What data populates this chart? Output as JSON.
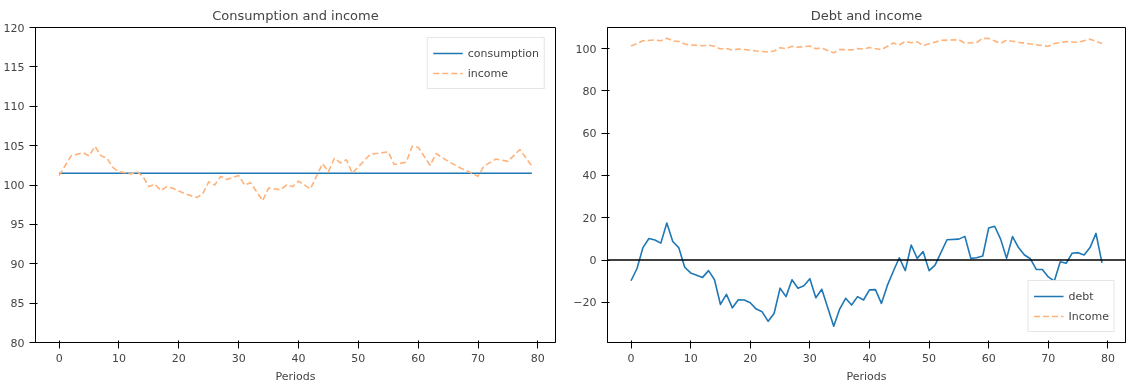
{
  "chart_data": [
    {
      "type": "line",
      "title": "Consumption and income",
      "xlabel": "Periods",
      "xlim": [
        -3.95,
        82.95
      ],
      "xticks": [
        0,
        10,
        20,
        30,
        40,
        50,
        60,
        70,
        80
      ],
      "ylim": [
        80,
        120
      ],
      "yticks": [
        80,
        85,
        90,
        95,
        100,
        105,
        110,
        115,
        120
      ],
      "grid": false,
      "legend": "top right",
      "series": [
        {
          "name": "consumption",
          "color": "#1f77b4",
          "line_style": "solid",
          "x": [
            0,
            79
          ],
          "values": [
            101.5,
            101.5
          ]
        },
        {
          "name": "income",
          "color": "#ffb27a",
          "line_style": "dashed",
          "x": [
            0,
            2,
            4,
            5,
            6,
            7,
            8,
            9,
            10,
            12,
            13,
            14,
            15,
            16,
            17,
            18,
            19,
            21,
            23,
            24,
            25,
            26,
            27,
            28,
            30,
            31,
            32,
            34,
            35,
            37,
            38,
            39,
            40,
            42,
            44,
            45,
            46,
            47,
            48,
            49,
            52,
            55,
            56,
            58,
            59,
            60,
            62,
            63,
            65,
            67,
            69,
            70,
            71,
            73,
            75,
            77,
            79
          ],
          "values": [
            101.2,
            103.7,
            104.1,
            103.7,
            104.9,
            103.7,
            103.4,
            102.2,
            101.7,
            101.4,
            101.7,
            101.1,
            99.8,
            100.1,
            99.3,
            99.8,
            99.6,
            98.9,
            98.4,
            98.9,
            100.4,
            100.0,
            101.1,
            100.7,
            101.2,
            100.0,
            100.3,
            98.0,
            99.6,
            99.4,
            100.0,
            99.8,
            100.5,
            99.5,
            102.7,
            101.7,
            103.4,
            102.8,
            103.2,
            101.5,
            103.9,
            104.2,
            102.6,
            102.9,
            104.9,
            104.8,
            102.5,
            104.0,
            103.0,
            102.2,
            101.5,
            101.1,
            102.4,
            103.3,
            103.0,
            104.5,
            102.4
          ]
        }
      ]
    },
    {
      "type": "line",
      "title": "Debt and income",
      "xlabel": "Periods",
      "xlim": [
        -3.95,
        82.95
      ],
      "xticks": [
        0,
        10,
        20,
        30,
        40,
        50,
        60,
        70,
        80
      ],
      "ylim": [
        -39,
        110
      ],
      "yticks": [
        -20,
        0,
        20,
        40,
        60,
        80,
        100
      ],
      "grid": false,
      "legend": "bottom right",
      "ref_lines": [
        {
          "axis": "y",
          "value": 0,
          "color": "#000000",
          "line_style": "solid"
        }
      ],
      "series": [
        {
          "name": "debt",
          "color": "#1f77b4",
          "line_style": "solid",
          "x": [
            0,
            1,
            2,
            3,
            4,
            5,
            6,
            7,
            8,
            9,
            10,
            12,
            13,
            14,
            15,
            16,
            17,
            18,
            19,
            20,
            21,
            22,
            23,
            24,
            25,
            26,
            27,
            28,
            29,
            30,
            31,
            32,
            34,
            35,
            36,
            37,
            38,
            39,
            40,
            41,
            42,
            43,
            44,
            45,
            46,
            47,
            48,
            49,
            50,
            51,
            53,
            55,
            56,
            57,
            58,
            59,
            60,
            61,
            62,
            63,
            64,
            65,
            66,
            67,
            68,
            69,
            70,
            71,
            72,
            73,
            74,
            75,
            76,
            77,
            78,
            79
          ],
          "values": [
            -9.8,
            -4.0,
            5.9,
            10.2,
            9.5,
            8.0,
            17.5,
            8.8,
            5.9,
            -3.4,
            -6.1,
            -8.2,
            -5.0,
            -9.3,
            -21.0,
            -16.2,
            -22.6,
            -18.8,
            -18.9,
            -20.2,
            -23.2,
            -24.5,
            -29.0,
            -25.3,
            -13.3,
            -17.3,
            -9.3,
            -13.3,
            -12.2,
            -8.8,
            -17.8,
            -13.8,
            -31.3,
            -23.2,
            -18.1,
            -21.3,
            -17.3,
            -18.9,
            -14.1,
            -14.0,
            -20.5,
            -12.0,
            -5.3,
            1.1,
            -5.0,
            7.1,
            0.8,
            4.0,
            -5.0,
            -2.4,
            9.6,
            9.9,
            11.2,
            0.8,
            1.1,
            1.9,
            15.2,
            16.0,
            9.9,
            0.8,
            11.1,
            5.9,
            2.4,
            0.6,
            -4.5,
            -4.5,
            -8.0,
            -10.0,
            -0.8,
            -1.5,
            3.2,
            3.5,
            2.4,
            5.9,
            12.6,
            -1.3
          ]
        },
        {
          "name": "Income",
          "color": "#ffb27a",
          "line_style": "dashed",
          "x": [
            0,
            2,
            4,
            5,
            6,
            7,
            8,
            9,
            10,
            12,
            13,
            14,
            15,
            16,
            17,
            18,
            19,
            21,
            23,
            24,
            25,
            26,
            27,
            28,
            30,
            31,
            32,
            34,
            35,
            37,
            38,
            39,
            40,
            42,
            44,
            45,
            46,
            47,
            48,
            49,
            52,
            55,
            56,
            58,
            59,
            60,
            62,
            63,
            65,
            67,
            69,
            70,
            71,
            73,
            75,
            77,
            79
          ],
          "values": [
            101.2,
            103.7,
            104.1,
            103.7,
            104.9,
            103.7,
            103.4,
            102.2,
            101.7,
            101.4,
            101.7,
            101.1,
            99.8,
            100.1,
            99.3,
            99.8,
            99.6,
            98.9,
            98.4,
            98.9,
            100.4,
            100.0,
            101.1,
            100.7,
            101.2,
            100.0,
            100.3,
            98.0,
            99.6,
            99.4,
            100.0,
            99.8,
            100.5,
            99.5,
            102.7,
            101.7,
            103.4,
            102.8,
            103.2,
            101.5,
            103.9,
            104.2,
            102.6,
            102.9,
            104.9,
            104.8,
            102.5,
            104.0,
            103.0,
            102.2,
            101.5,
            101.1,
            102.4,
            103.3,
            103.0,
            104.5,
            102.4
          ]
        }
      ]
    }
  ]
}
